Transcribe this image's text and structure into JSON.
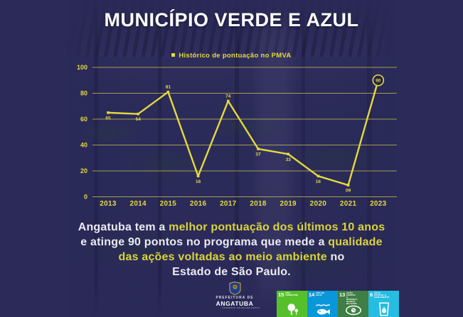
{
  "title": "MUNICÍPIO VERDE E AZUL",
  "colors": {
    "background_navy": "#2b2a58",
    "accent_yellow": "#e4da3d",
    "title_white": "#ffffff"
  },
  "chart_data": {
    "type": "line",
    "title": "Histórico de pontuação no PMVA",
    "categories": [
      "2013",
      "2014",
      "2015",
      "2016",
      "2017",
      "2018",
      "2019",
      "2020",
      "2021",
      "2023"
    ],
    "values": [
      65,
      64,
      81,
      16,
      74,
      37,
      33,
      16,
      9,
      90
    ],
    "point_labels": [
      "65",
      "64",
      "81",
      "16",
      "74",
      "37",
      "33",
      "16",
      "09",
      "90"
    ],
    "label_pos": [
      "below",
      "below",
      "above",
      "below",
      "above",
      "below",
      "below",
      "below",
      "below",
      "circled"
    ],
    "ylim": [
      0,
      100
    ],
    "yticks": [
      0,
      20,
      40,
      60,
      80,
      100
    ],
    "grid": true,
    "legend_position": "top",
    "series_color": "#e4da3d"
  },
  "caption": {
    "lines": [
      [
        {
          "t": "Angatuba tem a ",
          "c": "w"
        },
        {
          "t": "melhor pontuação dos últimos 10 anos",
          "c": "y"
        }
      ],
      [
        {
          "t": "e atinge 90 pontos no programa que mede a ",
          "c": "w"
        },
        {
          "t": "qualidade",
          "c": "y"
        }
      ],
      [
        {
          "t": "das ações voltadas ao meio ambiente",
          "c": "y"
        },
        {
          "t": " no",
          "c": "w"
        }
      ],
      [
        {
          "t": "Estado de São Paulo.",
          "c": "w"
        }
      ]
    ]
  },
  "footer": {
    "logo": {
      "line1": "PREFEITURA DE",
      "line2": "ANGATUBA",
      "tagline": "CUIDANDO DA NOSSA GENTE"
    },
    "sdg": [
      {
        "num": "15",
        "name": "Vida terrestre",
        "color": "#56C02B",
        "icon": "tree-icon"
      },
      {
        "num": "14",
        "name": "Vida na água",
        "color": "#0A97D9",
        "icon": "fish-icon"
      },
      {
        "num": "13",
        "name": "Ação contra a mudança global do clima",
        "color": "#3F7E44",
        "icon": "climate-eye-icon"
      },
      {
        "num": "6",
        "name": "Água potável e saneamento",
        "color": "#26BDE2",
        "icon": "water-glass-icon"
      }
    ]
  }
}
